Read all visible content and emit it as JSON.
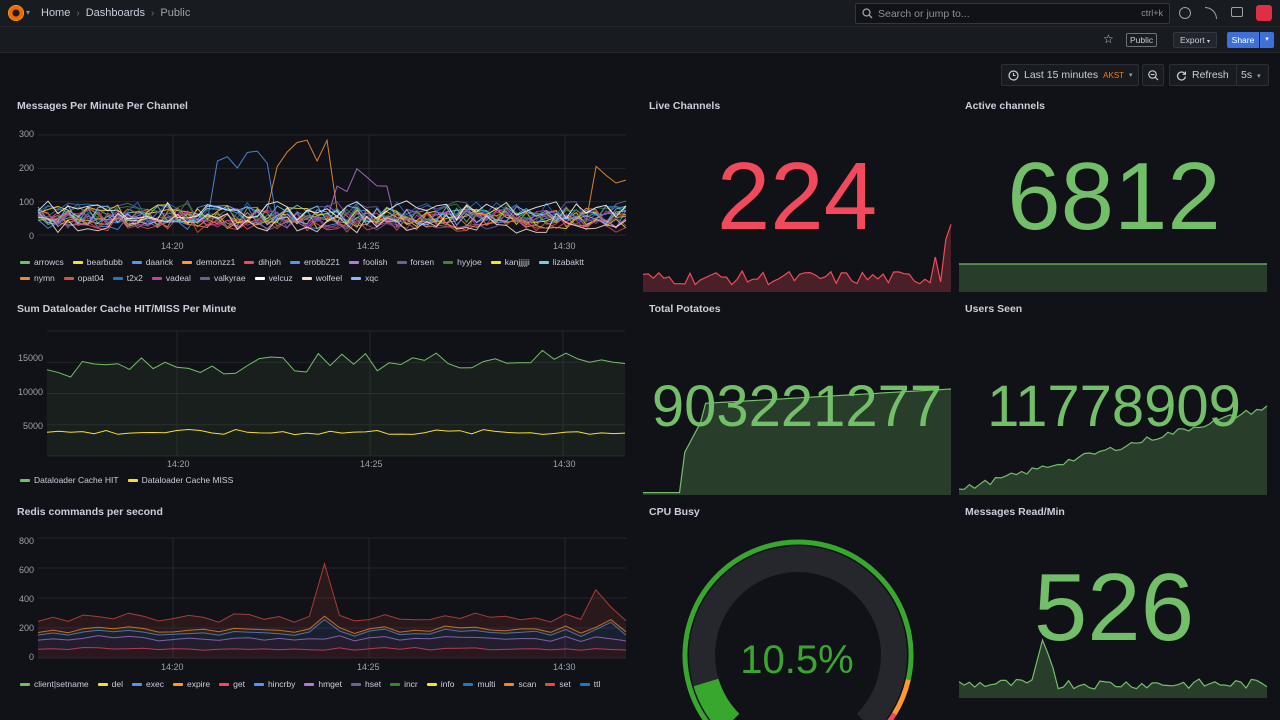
{
  "nav": {
    "breadcrumbs": [
      "Home",
      "Dashboards",
      "Public"
    ],
    "search_placeholder": "Search or jump to...",
    "search_shortcut": "ctrl+k"
  },
  "toolbar": {
    "public_badge": "Public",
    "export_label": "Export",
    "share_label": "Share"
  },
  "time": {
    "range_label": "Last 15 minutes",
    "timezone": "AKST",
    "refresh_label": "Refresh",
    "refresh_rate": "5s"
  },
  "colors": {
    "green": "#73bf69",
    "red": "#f2495c",
    "yellow": "#fade2a",
    "orange": "#ff9830",
    "blue": "#5794f2",
    "purple": "#b877d9"
  },
  "panels": {
    "messages_per_minute": {
      "title": "Messages Per Minute Per Channel",
      "y_ticks": [
        "300",
        "200",
        "100",
        "0"
      ],
      "x_ticks": [
        "14:20",
        "14:25",
        "14:30"
      ],
      "legend": [
        {
          "name": "arrowcs",
          "color": "#73bf69"
        },
        {
          "name": "bearbubb",
          "color": "#fade2a"
        },
        {
          "name": "daarick",
          "color": "#5794f2"
        },
        {
          "name": "demonzz1",
          "color": "#ff9830"
        },
        {
          "name": "dihjoh",
          "color": "#f2495c"
        },
        {
          "name": "erobb221",
          "color": "#5794f2"
        },
        {
          "name": "foolish",
          "color": "#b877d9"
        },
        {
          "name": "forsen",
          "color": "#705da0"
        },
        {
          "name": "hyyjoe",
          "color": "#37872d"
        },
        {
          "name": "kanjjjjji",
          "color": "#fade2a"
        },
        {
          "name": "lizabaktt",
          "color": "#6ed0e0"
        },
        {
          "name": "nymn",
          "color": "#ef843c"
        },
        {
          "name": "opat04",
          "color": "#e24d42"
        },
        {
          "name": "t2x2",
          "color": "#1f78c1"
        },
        {
          "name": "vadeal",
          "color": "#ba43a9"
        },
        {
          "name": "valkyrae",
          "color": "#705da0"
        },
        {
          "name": "velcuz",
          "color": "#ffffff"
        },
        {
          "name": "wolfeel",
          "color": "#f9e2d2"
        },
        {
          "name": "xqc",
          "color": "#8ab8ff"
        }
      ]
    },
    "live_channels": {
      "title": "Live Channels",
      "value": "224"
    },
    "active_channels": {
      "title": "Active channels",
      "value": "6812"
    },
    "dataloader": {
      "title": "Sum Dataloader Cache HIT/MISS Per Minute",
      "y_ticks": [
        "15000",
        "10000",
        "5000"
      ],
      "x_ticks": [
        "14:20",
        "14:25",
        "14:30"
      ],
      "legend": [
        {
          "name": "Dataloader Cache HIT",
          "color": "#73bf69"
        },
        {
          "name": "Dataloader Cache MISS",
          "color": "#fade2a"
        }
      ]
    },
    "total_potatoes": {
      "title": "Total Potatoes",
      "value": "903221277"
    },
    "users_seen": {
      "title": "Users Seen",
      "value": "11778909"
    },
    "redis": {
      "title": "Redis commands per second",
      "y_ticks": [
        "800",
        "600",
        "400",
        "200",
        "0"
      ],
      "x_ticks": [
        "14:20",
        "14:25",
        "14:30"
      ],
      "legend": [
        {
          "name": "client|setname",
          "color": "#73bf69"
        },
        {
          "name": "del",
          "color": "#fade2a"
        },
        {
          "name": "exec",
          "color": "#5794f2"
        },
        {
          "name": "expire",
          "color": "#ff9830"
        },
        {
          "name": "get",
          "color": "#f2495c"
        },
        {
          "name": "hincrby",
          "color": "#5794f2"
        },
        {
          "name": "hmget",
          "color": "#b877d9"
        },
        {
          "name": "hset",
          "color": "#705da0"
        },
        {
          "name": "incr",
          "color": "#37872d"
        },
        {
          "name": "info",
          "color": "#fade2a"
        },
        {
          "name": "multi",
          "color": "#1f78c1"
        },
        {
          "name": "scan",
          "color": "#ef843c"
        },
        {
          "name": "set",
          "color": "#e24d42"
        },
        {
          "name": "ttl",
          "color": "#1f78c1"
        }
      ]
    },
    "cpu_busy": {
      "title": "CPU Busy",
      "value": "10.5%",
      "percent": 10.5
    },
    "messages_read": {
      "title": "Messages Read/Min",
      "value": "526"
    }
  }
}
